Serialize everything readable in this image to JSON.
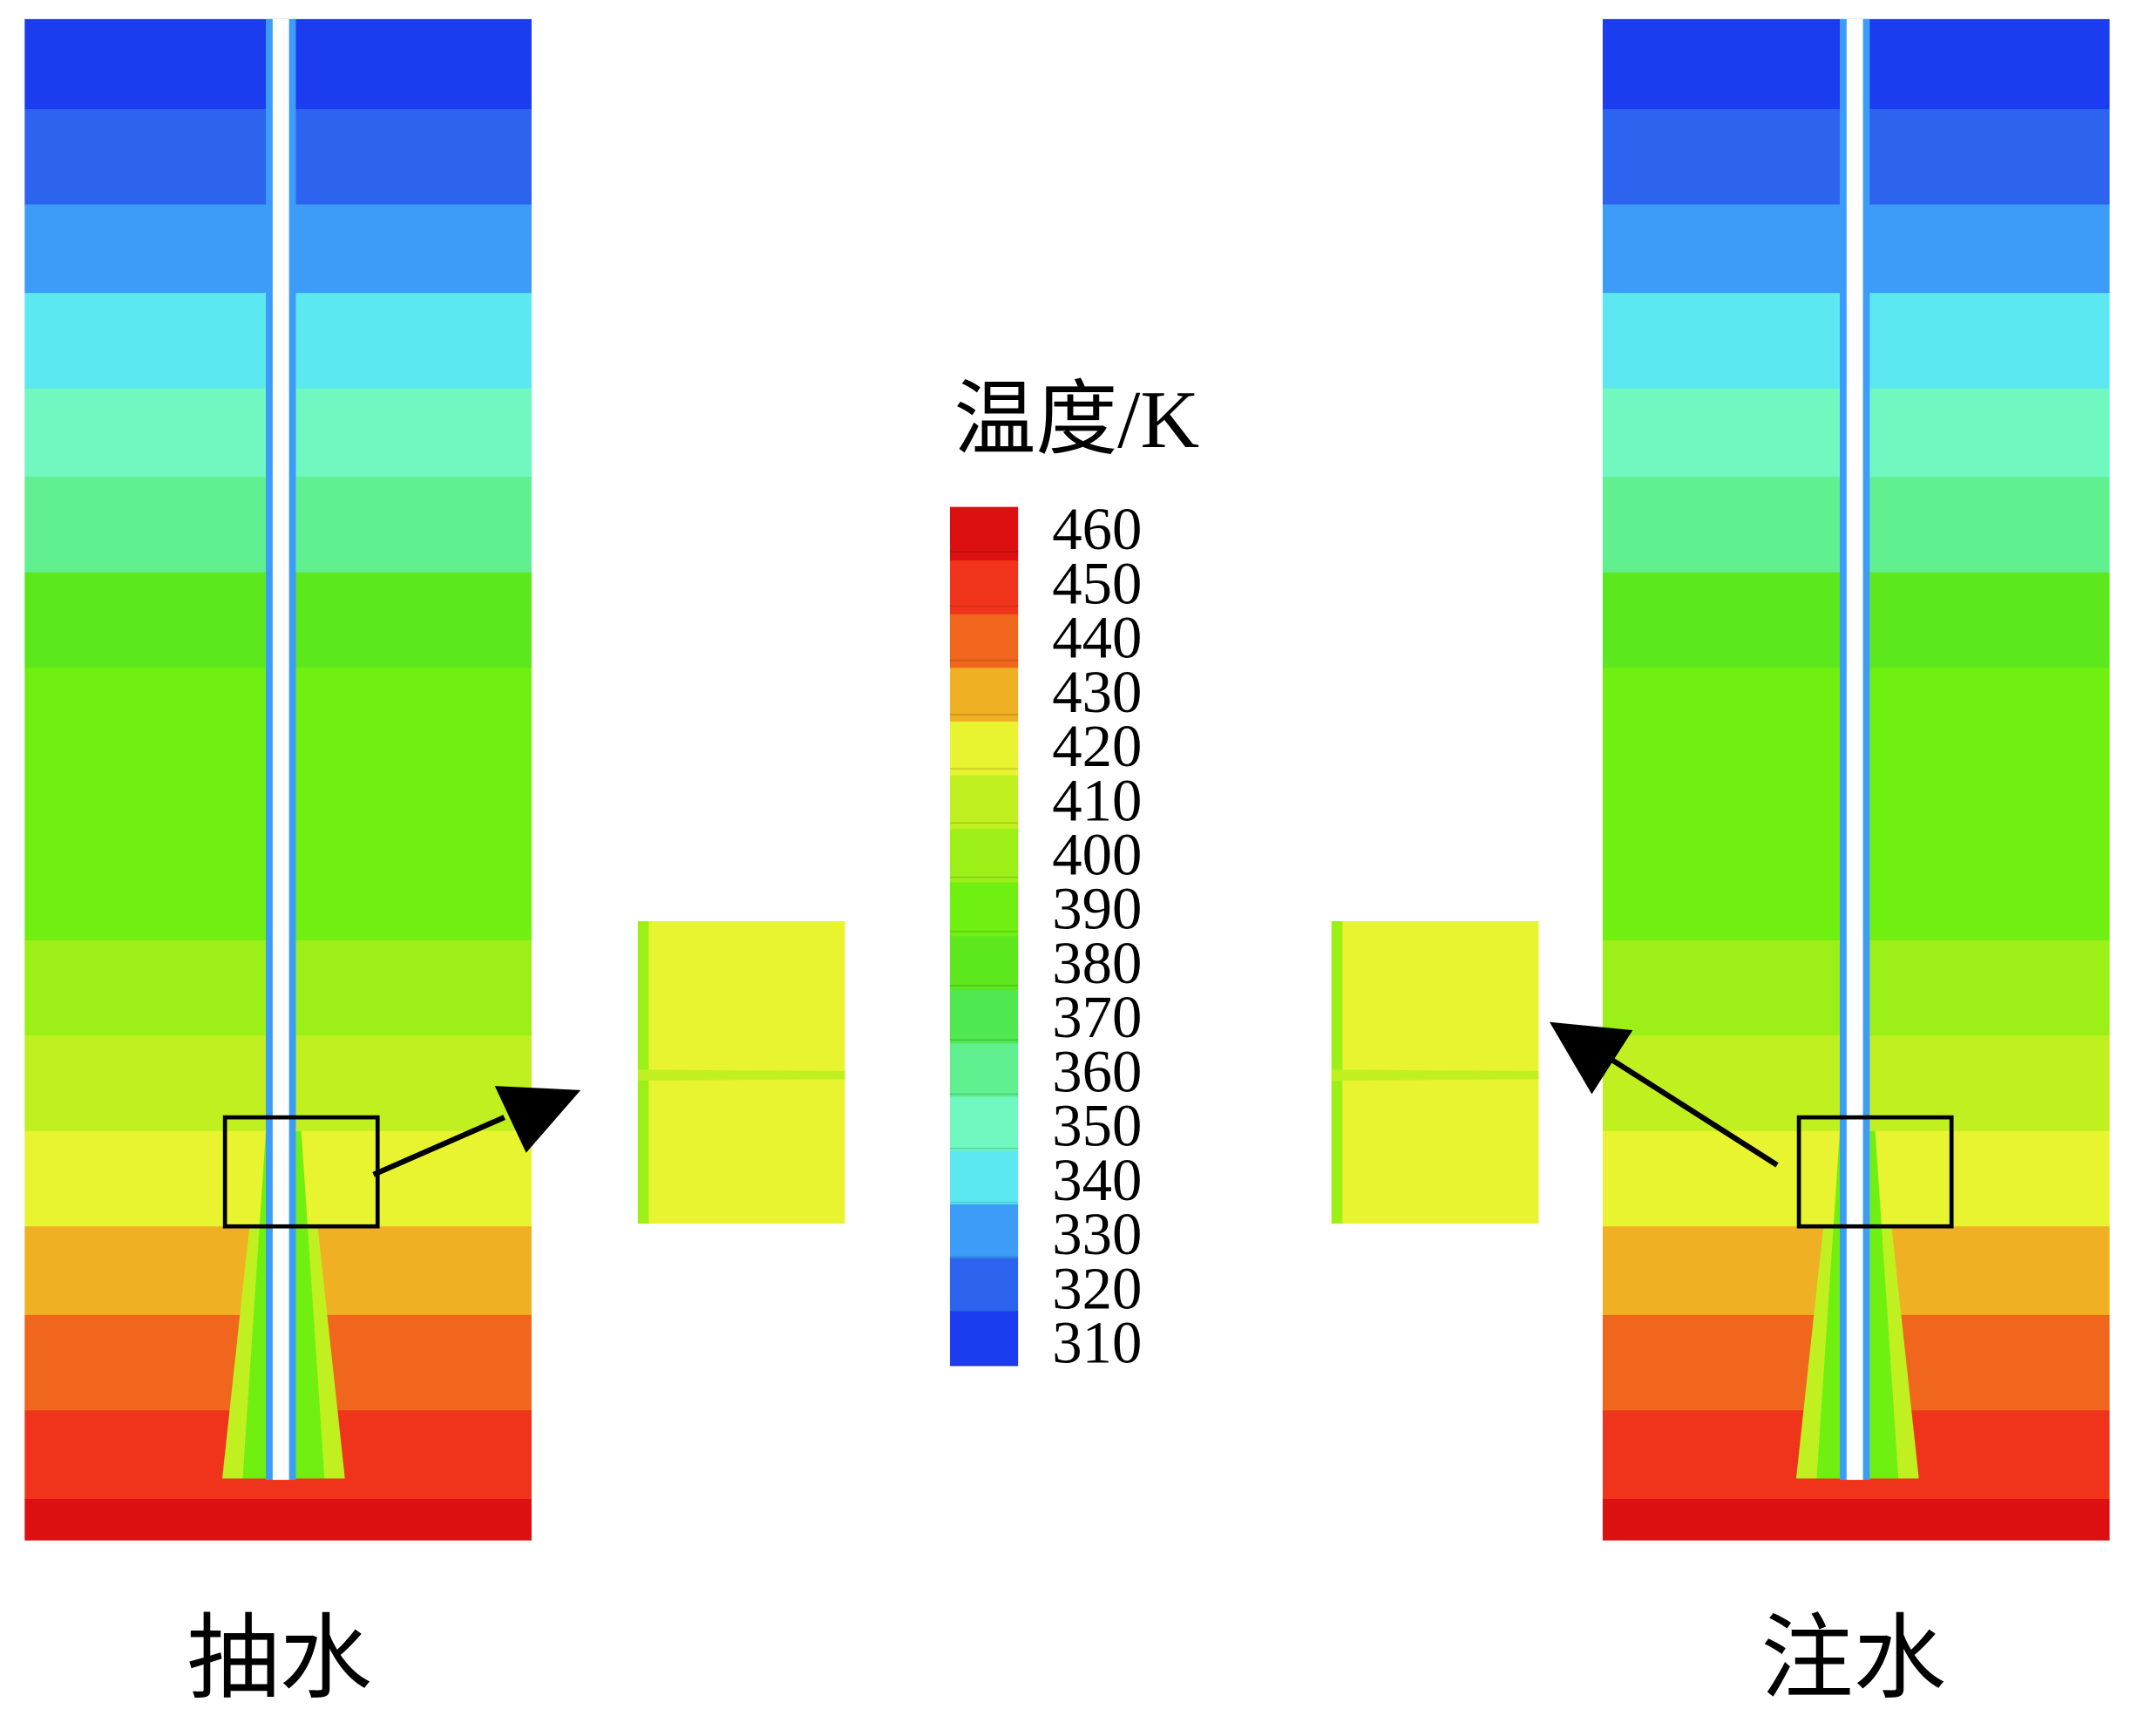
{
  "colorbar": {
    "title": "温度/K",
    "ticks": [
      460,
      450,
      440,
      430,
      420,
      410,
      400,
      390,
      380,
      370,
      360,
      350,
      340,
      330,
      320,
      310
    ],
    "colors": [
      "#dc1010",
      "#f0341c",
      "#f0661c",
      "#f0b024",
      "#e8f430",
      "#c0f020",
      "#9cf018",
      "#70f010",
      "#5ce81c",
      "#50e850",
      "#60f090",
      "#70f8c0",
      "#5ce8f0",
      "#3c9cf8",
      "#2c64f0",
      "#1c3cf0"
    ]
  },
  "panels": [
    {
      "label": "抽水"
    },
    {
      "label": "注水"
    }
  ]
}
